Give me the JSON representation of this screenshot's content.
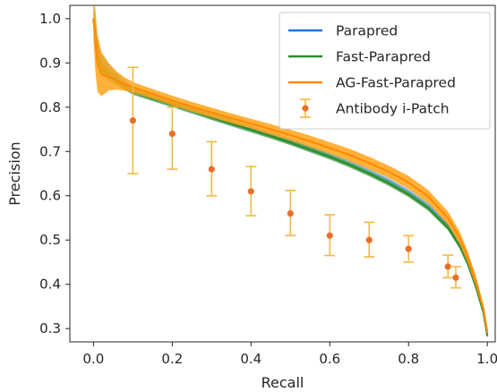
{
  "chart_data": {
    "type": "line",
    "title": "",
    "xlabel": "Recall",
    "ylabel": "Precision",
    "xlim": [
      -0.06,
      1.02
    ],
    "ylim": [
      0.27,
      1.03
    ],
    "xticks": [
      0.0,
      0.2,
      0.4,
      0.6,
      0.8,
      1.0
    ],
    "yticks": [
      0.3,
      0.4,
      0.5,
      0.6,
      0.7,
      0.8,
      0.9,
      1.0
    ],
    "xtick_labels": [
      "0.0",
      "0.2",
      "0.4",
      "0.6",
      "0.8",
      "1.0"
    ],
    "ytick_labels": [
      "0.3",
      "0.4",
      "0.5",
      "0.6",
      "0.7",
      "0.8",
      "0.9",
      "1.0"
    ],
    "grid": false,
    "legend_position": "top-right",
    "series": [
      {
        "name": "Parapred",
        "kind": "line",
        "color": "#1f77e0",
        "band_color": "#6fa8dc",
        "x": [
          0.0,
          0.005,
          0.01,
          0.02,
          0.04,
          0.06,
          0.08,
          0.1,
          0.15,
          0.2,
          0.25,
          0.3,
          0.35,
          0.4,
          0.45,
          0.5,
          0.55,
          0.6,
          0.65,
          0.7,
          0.75,
          0.8,
          0.85,
          0.9,
          0.93,
          0.95,
          0.97,
          0.98,
          0.99,
          1.0
        ],
        "y": [
          1.0,
          0.97,
          0.93,
          0.9,
          0.88,
          0.865,
          0.85,
          0.838,
          0.822,
          0.808,
          0.793,
          0.779,
          0.765,
          0.751,
          0.737,
          0.722,
          0.706,
          0.69,
          0.672,
          0.653,
          0.632,
          0.607,
          0.576,
          0.532,
          0.49,
          0.45,
          0.4,
          0.37,
          0.34,
          0.29
        ],
        "band": [
          0.03,
          0.03,
          0.028,
          0.02,
          0.016,
          0.012,
          0.01,
          0.009,
          0.008,
          0.008,
          0.007,
          0.007,
          0.007,
          0.007,
          0.007,
          0.007,
          0.007,
          0.007,
          0.007,
          0.007,
          0.007,
          0.007,
          0.007,
          0.008,
          0.008,
          0.008,
          0.008,
          0.008,
          0.008,
          0.008
        ]
      },
      {
        "name": "Fast-Parapred",
        "kind": "line",
        "color": "#2e8b2e",
        "band_color": "#5fae5f",
        "x": [
          0.0,
          0.005,
          0.01,
          0.02,
          0.04,
          0.06,
          0.08,
          0.1,
          0.15,
          0.2,
          0.25,
          0.3,
          0.35,
          0.4,
          0.45,
          0.5,
          0.55,
          0.6,
          0.65,
          0.7,
          0.75,
          0.8,
          0.85,
          0.9,
          0.93,
          0.95,
          0.97,
          0.98,
          0.99,
          1.0
        ],
        "y": [
          1.0,
          0.96,
          0.92,
          0.89,
          0.872,
          0.86,
          0.847,
          0.835,
          0.82,
          0.806,
          0.792,
          0.777,
          0.763,
          0.749,
          0.735,
          0.72,
          0.704,
          0.688,
          0.67,
          0.65,
          0.628,
          0.603,
          0.572,
          0.528,
          0.486,
          0.447,
          0.397,
          0.367,
          0.337,
          0.283
        ],
        "band": [
          0.025,
          0.025,
          0.022,
          0.016,
          0.012,
          0.01,
          0.008,
          0.007,
          0.006,
          0.006,
          0.006,
          0.006,
          0.006,
          0.006,
          0.006,
          0.006,
          0.006,
          0.006,
          0.006,
          0.006,
          0.006,
          0.006,
          0.006,
          0.006,
          0.006,
          0.006,
          0.006,
          0.006,
          0.006,
          0.006
        ]
      },
      {
        "name": "AG-Fast-Parapred",
        "kind": "line",
        "color": "#ff8c00",
        "band_color": "#ffa31a",
        "x": [
          0.0,
          0.005,
          0.01,
          0.02,
          0.04,
          0.06,
          0.08,
          0.1,
          0.15,
          0.2,
          0.25,
          0.3,
          0.35,
          0.4,
          0.45,
          0.5,
          0.55,
          0.6,
          0.65,
          0.7,
          0.75,
          0.8,
          0.85,
          0.9,
          0.93,
          0.95,
          0.97,
          0.98,
          0.99,
          1.0
        ],
        "y": [
          1.0,
          0.95,
          0.9,
          0.875,
          0.868,
          0.86,
          0.852,
          0.845,
          0.83,
          0.815,
          0.801,
          0.788,
          0.775,
          0.763,
          0.75,
          0.737,
          0.723,
          0.708,
          0.692,
          0.674,
          0.654,
          0.63,
          0.598,
          0.55,
          0.505,
          0.462,
          0.41,
          0.378,
          0.345,
          0.29
        ],
        "band": [
          0.05,
          0.07,
          0.065,
          0.05,
          0.03,
          0.02,
          0.015,
          0.012,
          0.011,
          0.011,
          0.011,
          0.011,
          0.011,
          0.011,
          0.012,
          0.012,
          0.013,
          0.013,
          0.014,
          0.014,
          0.014,
          0.015,
          0.015,
          0.015,
          0.014,
          0.013,
          0.012,
          0.01,
          0.008,
          0.006
        ]
      },
      {
        "name": "Antibody i-Patch",
        "kind": "errorbar",
        "color": "#e8702a",
        "errcolor": "#f4b942",
        "x": [
          0.1,
          0.2,
          0.3,
          0.4,
          0.5,
          0.6,
          0.7,
          0.8,
          0.9,
          0.92
        ],
        "y": [
          0.77,
          0.74,
          0.66,
          0.61,
          0.56,
          0.51,
          0.5,
          0.48,
          0.44,
          0.415
        ],
        "yerr_low": [
          0.65,
          0.66,
          0.6,
          0.555,
          0.51,
          0.465,
          0.462,
          0.45,
          0.415,
          0.392
        ],
        "yerr_high": [
          0.89,
          0.8,
          0.722,
          0.666,
          0.612,
          0.557,
          0.54,
          0.51,
          0.466,
          0.44
        ]
      }
    ]
  }
}
